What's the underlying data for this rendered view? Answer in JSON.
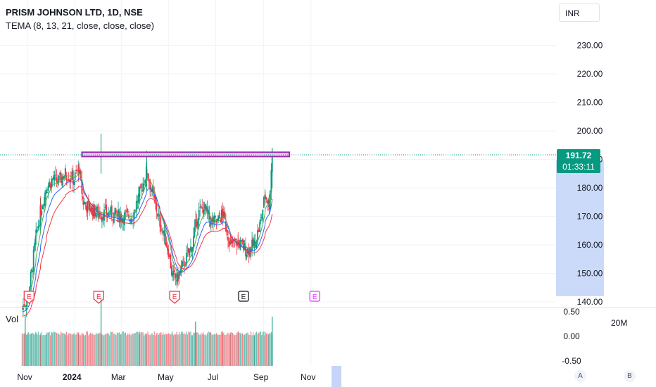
{
  "header": {
    "title": "PRISM JOHNSON LTD, 1D, NSE",
    "indicator": "TEMA (8, 13, 21, close, close, close)",
    "currency": "INR"
  },
  "volume_pane": {
    "label": "Vol",
    "scale_label": "20M"
  },
  "last_price": {
    "price": "191.72",
    "countdown": "01:33:11"
  },
  "buttons": {
    "a": "A",
    "b": "B"
  },
  "earnings_marker": "E",
  "colors": {
    "up": "#089981",
    "down": "#f23645",
    "tema8": "#4caf50",
    "tema13": "#2962ff",
    "tema21": "#f23645",
    "resistance_box": "#9c27b0",
    "price_range": "#bbcdf7"
  },
  "chart_data": {
    "type": "candlestick",
    "title": "PRISM JOHNSON LTD, 1D, NSE",
    "y_axis": {
      "ticks": [
        "230.00",
        "220.00",
        "210.00",
        "200.00",
        "190.00",
        "180.00",
        "170.00",
        "160.00",
        "150.00",
        "140.00"
      ],
      "ylim": [
        140,
        235
      ]
    },
    "x_axis": {
      "ticks": [
        "Nov",
        "2024",
        "Mar",
        "May",
        "Jul",
        "Sep",
        "Nov"
      ]
    },
    "volume_axis": {
      "ticks": [
        "0.50",
        "0.00",
        "-0.50"
      ]
    },
    "price_path": [
      [
        "2023-10-25",
        138
      ],
      [
        "2023-11-01",
        141
      ],
      [
        "2023-11-06",
        150
      ],
      [
        "2023-11-12",
        163
      ],
      [
        "2023-11-18",
        172
      ],
      [
        "2023-11-25",
        180
      ],
      [
        "2023-12-03",
        183
      ],
      [
        "2023-12-10",
        182
      ],
      [
        "2023-12-20",
        185
      ],
      [
        "2023-12-31",
        183
      ],
      [
        "2024-01-06",
        187
      ],
      [
        "2024-01-12",
        175
      ],
      [
        "2024-01-20",
        173
      ],
      [
        "2024-02-01",
        171
      ],
      [
        "2024-02-15",
        171
      ],
      [
        "2024-03-01",
        170
      ],
      [
        "2024-03-15",
        170
      ],
      [
        "2024-03-25",
        178
      ],
      [
        "2024-04-03",
        186
      ],
      [
        "2024-04-10",
        178
      ],
      [
        "2024-04-20",
        168
      ],
      [
        "2024-05-01",
        158
      ],
      [
        "2024-05-06",
        149
      ],
      [
        "2024-05-12",
        148
      ],
      [
        "2024-05-20",
        153
      ],
      [
        "2024-06-01",
        160
      ],
      [
        "2024-06-08",
        171
      ],
      [
        "2024-06-16",
        173
      ],
      [
        "2024-06-25",
        168
      ],
      [
        "2024-07-03",
        168
      ],
      [
        "2024-07-10",
        171
      ],
      [
        "2024-07-20",
        160
      ],
      [
        "2024-07-30",
        161
      ],
      [
        "2024-08-10",
        158
      ],
      [
        "2024-08-20",
        160
      ],
      [
        "2024-08-28",
        168
      ],
      [
        "2024-09-03",
        178
      ],
      [
        "2024-09-08",
        174
      ],
      [
        "2024-09-12",
        191.72
      ]
    ],
    "spikes": [
      {
        "date": "2024-02-04",
        "high": 199
      },
      {
        "date": "2024-04-03",
        "high": 193
      },
      {
        "date": "2024-09-12",
        "high": 194
      }
    ],
    "resistance_box": {
      "from": "2023-10-25",
      "to": "2024-09-25",
      "low": 191,
      "high": 192.5
    },
    "last_price": 191.72,
    "earnings_markers": [
      {
        "date": "2023-11-03",
        "style": "red"
      },
      {
        "date": "2024-02-01",
        "style": "red"
      },
      {
        "date": "2024-05-09",
        "style": "red"
      },
      {
        "date": "2024-08-06",
        "style": "black"
      },
      {
        "date": "2024-11-06",
        "style": "purple"
      }
    ],
    "volume_spikes": [
      {
        "date": "2023-10-29",
        "value": 0.42
      },
      {
        "date": "2024-02-04",
        "value": 0.78
      },
      {
        "date": "2024-06-05",
        "value": 0.3
      },
      {
        "date": "2024-09-12",
        "value": 0.4
      }
    ],
    "series": [
      {
        "name": "TEMA 8",
        "color": "#4caf50"
      },
      {
        "name": "TEMA 13",
        "color": "#2962ff"
      },
      {
        "name": "TEMA 21",
        "color": "#f23645"
      }
    ]
  }
}
